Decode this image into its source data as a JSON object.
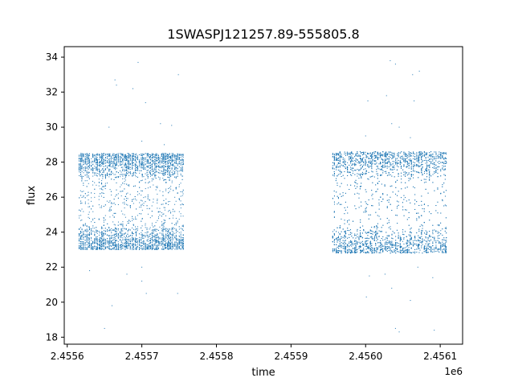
{
  "chart_data": {
    "type": "scatter",
    "title": "1SWASPJ121257.89-555805.8",
    "xlabel": "time",
    "ylabel": "flux",
    "x_offset_label": "1e6",
    "xlim": [
      2455596,
      2456130
    ],
    "ylim": [
      17.6,
      34.6
    ],
    "x_ticks": [
      2455600,
      2455700,
      2455800,
      2455900,
      2456000,
      2456100
    ],
    "x_tick_labels": [
      "2.4556",
      "2.4557",
      "2.4558",
      "2.4559",
      "2.4560",
      "2.4561"
    ],
    "y_ticks": [
      18,
      20,
      22,
      24,
      26,
      28,
      30,
      32,
      34
    ],
    "y_tick_labels": [
      "18",
      "20",
      "22",
      "24",
      "26",
      "28",
      "30",
      "32",
      "34"
    ],
    "grid": false,
    "marker_color": "#1f77b4",
    "observing_windows": [
      {
        "x_start": 2455616,
        "x_end": 2455756,
        "flux_low": 23.0,
        "flux_high": 28.5
      },
      {
        "x_start": 2455956,
        "x_end": 2456108,
        "flux_low": 22.8,
        "flux_high": 28.6
      }
    ],
    "approx_point_count": 9000,
    "outliers": [
      {
        "x": 2455664,
        "y": 32.7
      },
      {
        "x": 2455666,
        "y": 32.4
      },
      {
        "x": 2455695,
        "y": 33.7
      },
      {
        "x": 2455688,
        "y": 32.2
      },
      {
        "x": 2455749,
        "y": 33.0
      },
      {
        "x": 2455705,
        "y": 31.4
      },
      {
        "x": 2455725,
        "y": 30.2
      },
      {
        "x": 2455740,
        "y": 30.1
      },
      {
        "x": 2455656,
        "y": 30.0
      },
      {
        "x": 2455700,
        "y": 29.2
      },
      {
        "x": 2455730,
        "y": 29.0
      },
      {
        "x": 2455660,
        "y": 19.8
      },
      {
        "x": 2455650,
        "y": 18.5
      },
      {
        "x": 2455700,
        "y": 21.2
      },
      {
        "x": 2455706,
        "y": 20.5
      },
      {
        "x": 2455748,
        "y": 20.5
      },
      {
        "x": 2455700,
        "y": 22.0
      },
      {
        "x": 2455680,
        "y": 21.6
      },
      {
        "x": 2455630,
        "y": 21.8
      },
      {
        "x": 2456033,
        "y": 33.8
      },
      {
        "x": 2456040,
        "y": 33.6
      },
      {
        "x": 2456063,
        "y": 33.0
      },
      {
        "x": 2456072,
        "y": 33.2
      },
      {
        "x": 2456028,
        "y": 31.8
      },
      {
        "x": 2456065,
        "y": 31.5
      },
      {
        "x": 2456003,
        "y": 31.5
      },
      {
        "x": 2456035,
        "y": 30.2
      },
      {
        "x": 2456045,
        "y": 30.0
      },
      {
        "x": 2456000,
        "y": 29.5
      },
      {
        "x": 2456060,
        "y": 29.4
      },
      {
        "x": 2456001,
        "y": 20.3
      },
      {
        "x": 2456040,
        "y": 18.5
      },
      {
        "x": 2456045,
        "y": 18.3
      },
      {
        "x": 2456092,
        "y": 18.4
      },
      {
        "x": 2456060,
        "y": 20.1
      },
      {
        "x": 2456035,
        "y": 20.8
      },
      {
        "x": 2456005,
        "y": 21.5
      },
      {
        "x": 2456090,
        "y": 21.4
      },
      {
        "x": 2456026,
        "y": 21.6
      },
      {
        "x": 2456070,
        "y": 22.0
      }
    ]
  }
}
